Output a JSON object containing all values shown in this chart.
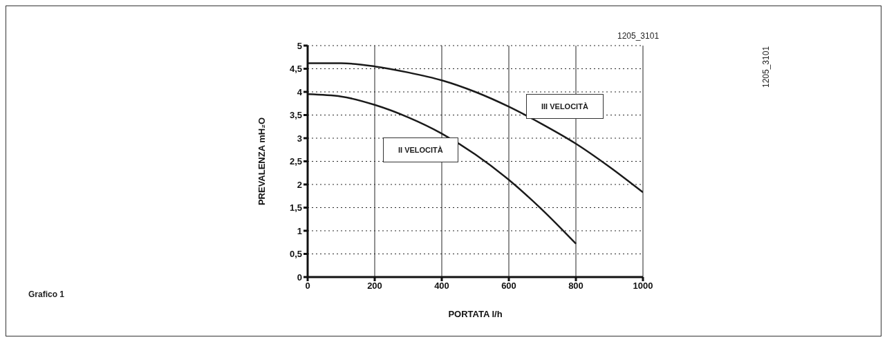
{
  "chart_data": {
    "type": "line",
    "xlabel": "PORTATA l/h",
    "ylabel": "PREVALENZA mH₂O",
    "x": [
      0,
      100,
      200,
      300,
      400,
      500,
      600,
      700,
      800,
      900,
      1000
    ],
    "series": [
      {
        "name": "II VELOCITÀ",
        "color": "#1a1a1a",
        "values": [
          3.95,
          3.9,
          3.72,
          3.45,
          3.1,
          2.65,
          2.1,
          1.45,
          0.72,
          null,
          null
        ]
      },
      {
        "name": "III VELOCITÀ",
        "color": "#1a1a1a",
        "values": [
          4.62,
          4.62,
          4.55,
          4.42,
          4.25,
          4.0,
          3.68,
          3.3,
          2.88,
          2.38,
          1.83
        ]
      }
    ],
    "xlim": [
      0,
      1000
    ],
    "xticks": [
      0,
      200,
      400,
      600,
      800,
      1000
    ],
    "ylim": [
      0,
      5
    ],
    "yticks": [
      0,
      {
        "value": 0.5,
        "label": "0,5"
      },
      1,
      {
        "value": 1.5,
        "label": "1,5"
      },
      2,
      {
        "value": 2.5,
        "label": "2,5"
      },
      3,
      {
        "value": 3.5,
        "label": "3,5"
      },
      4,
      {
        "value": 4.5,
        "label": "4,5"
      },
      5
    ],
    "grid": true,
    "legend": false,
    "annotations": [
      "1205_3101",
      "1205_3101",
      "Grafico 1"
    ]
  }
}
